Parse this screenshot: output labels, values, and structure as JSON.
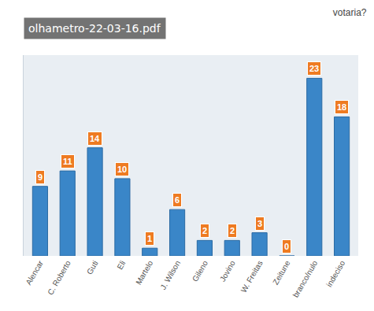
{
  "chart_data": {
    "type": "bar",
    "title": "votaria?",
    "annotations": [
      "olhametro-22-03-16.pdf"
    ],
    "categories": [
      "Alencar",
      "C. Roberto",
      "Guti",
      "Eli",
      "Martelo",
      "J. Wilson",
      "Gileno",
      "Jovino",
      "W. Freitas",
      "Zeitune",
      "branco/nulo",
      "indeciso"
    ],
    "values": [
      9,
      11,
      14,
      10,
      1,
      6,
      2,
      2,
      3,
      0,
      23,
      18
    ],
    "color": "#3a86c8",
    "ylim": [
      0,
      26
    ],
    "tick_labels": "x",
    "data_labels": true,
    "grid": false
  }
}
